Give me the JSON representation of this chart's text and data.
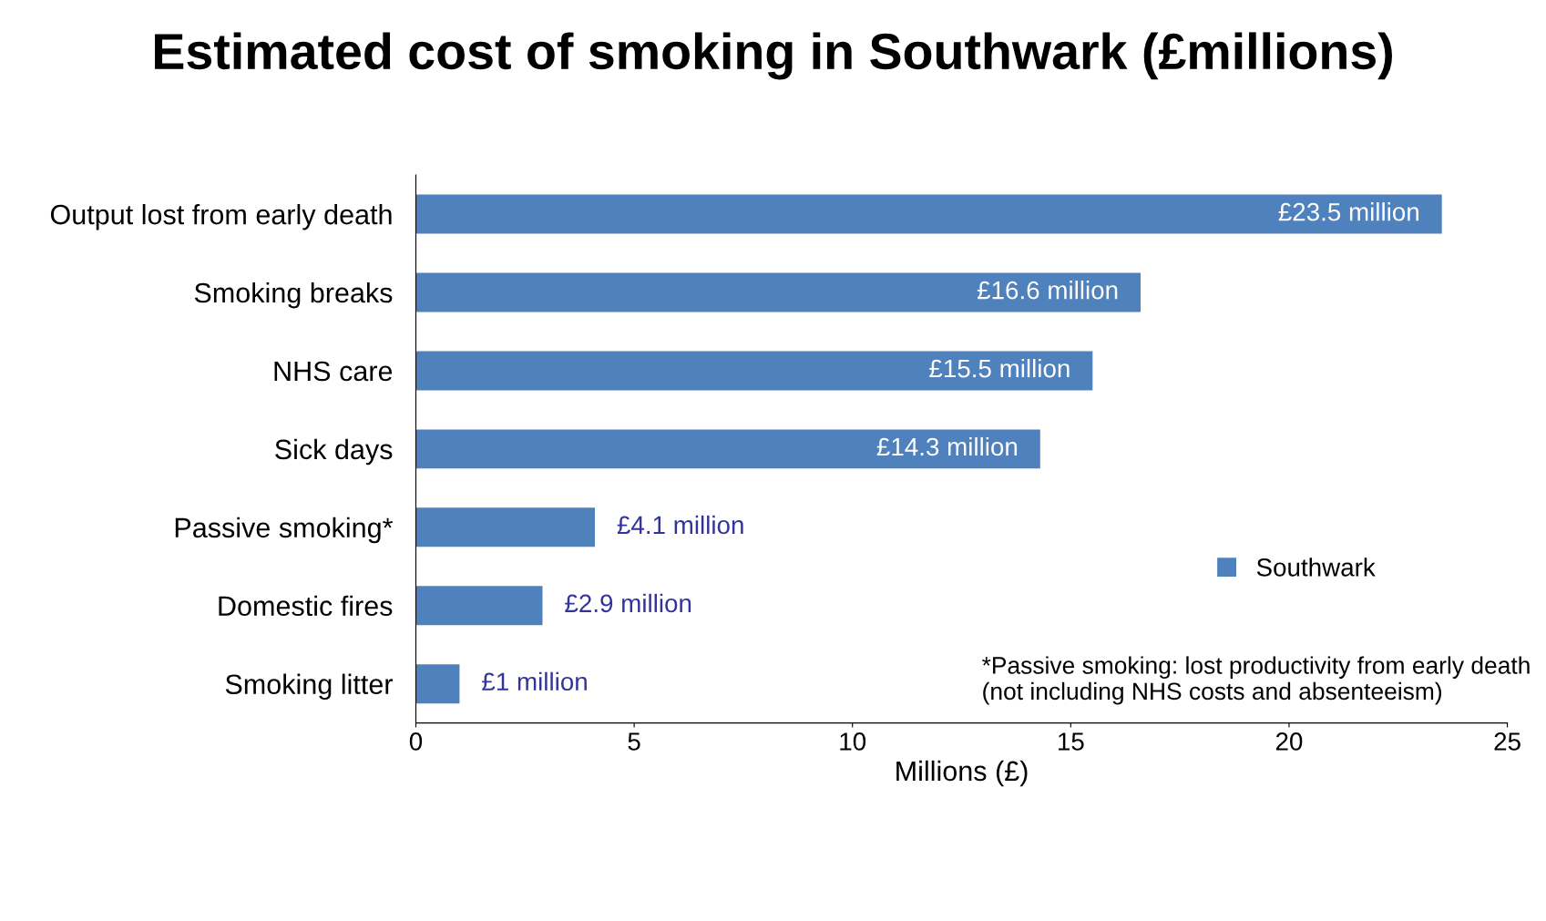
{
  "chart_data": {
    "type": "bar",
    "orientation": "horizontal",
    "title": "Estimated cost of smoking in Southwark (£millions)",
    "categories": [
      "Output lost from early death",
      "Smoking breaks",
      "NHS care",
      "Sick days",
      "Passive smoking*",
      "Domestic fires",
      "Smoking litter"
    ],
    "series": [
      {
        "name": "Southwark",
        "color": "#4f81bd",
        "values": [
          23.5,
          16.6,
          15.5,
          14.3,
          4.1,
          2.9,
          1
        ],
        "value_labels": [
          "£23.5 million",
          "£16.6 million",
          "£15.5 million",
          "£14.3 million",
          "£4.1 million",
          "£2.9 million",
          "£1 million"
        ]
      }
    ],
    "xlabel": "Millions (£)",
    "xlim": [
      0,
      25
    ],
    "xticks": [
      0,
      5,
      10,
      15,
      20,
      25
    ],
    "annotations": [
      "*Passive smoking: lost productivity from early death (not including NHS costs and absenteeism)"
    ],
    "legend": "right",
    "grid": false
  }
}
